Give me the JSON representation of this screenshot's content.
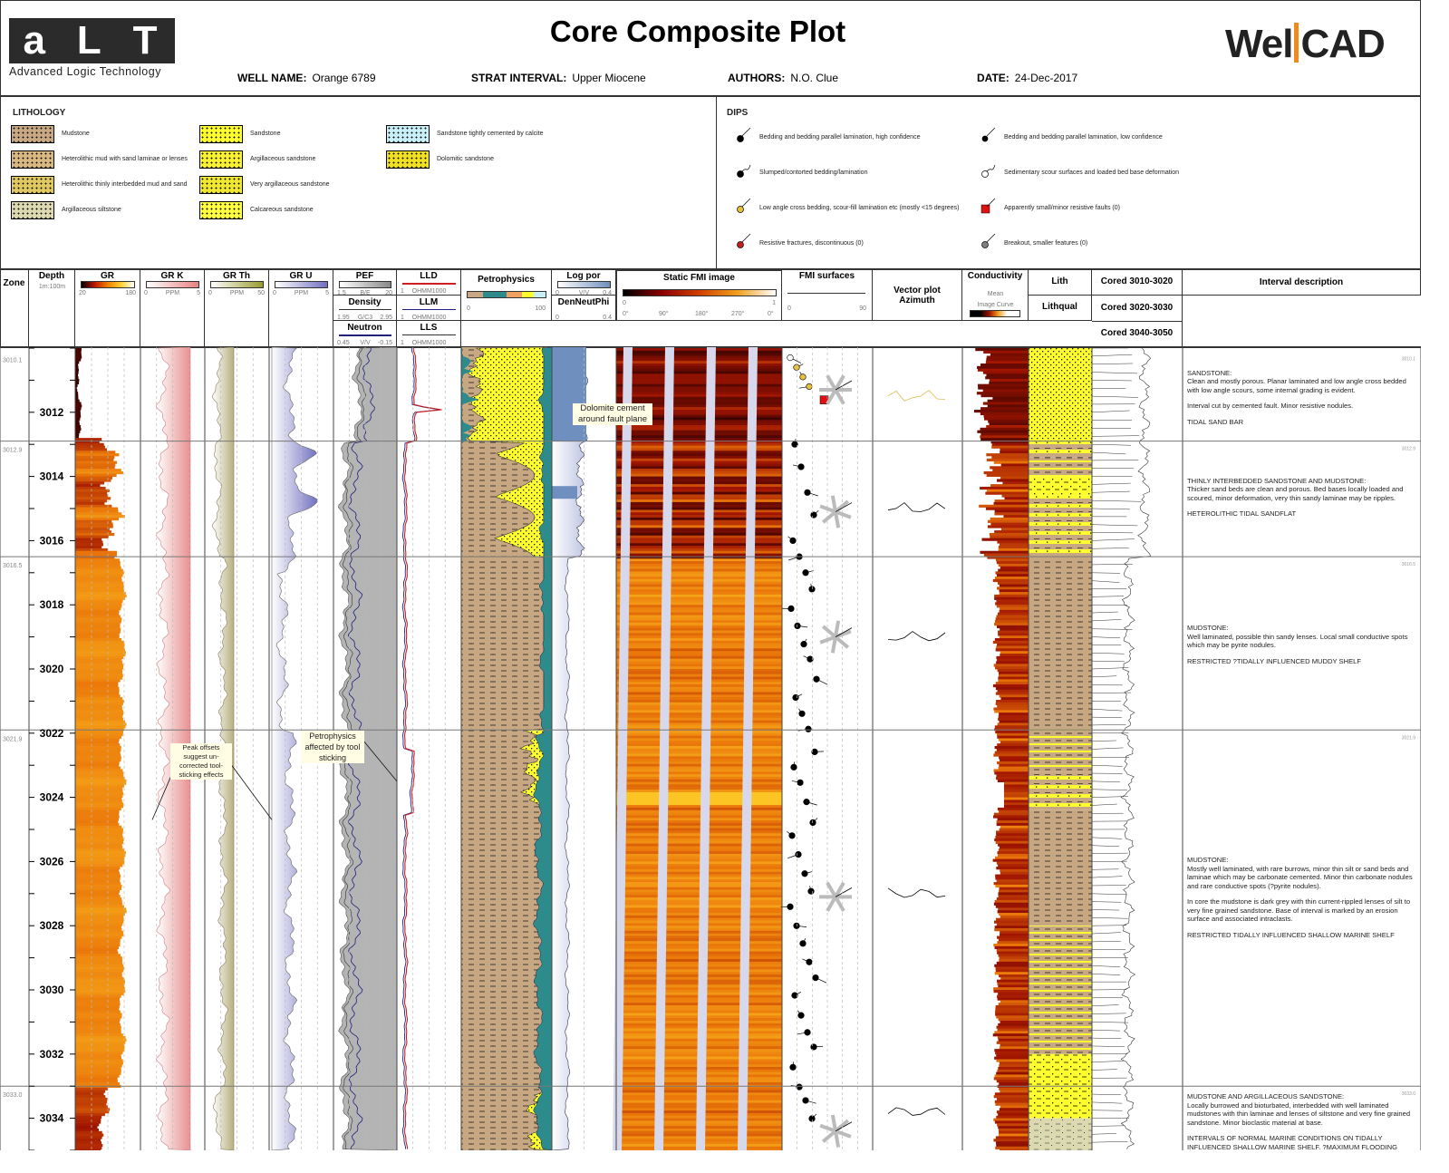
{
  "header": {
    "title": "Core Composite Plot",
    "logo_left_text": "aLT",
    "logo_left_subtitle": "Advanced Logic Technology",
    "logo_right_text": "WellCAD",
    "fields": [
      {
        "key": "WELL NAME:",
        "value": "Orange 6789"
      },
      {
        "key": "STRAT INTERVAL:",
        "value": "Upper Miocene"
      },
      {
        "key": "AUTHORS:",
        "value": "N.O. Clue"
      },
      {
        "key": "DATE:",
        "value": "24-Dec-2017"
      }
    ]
  },
  "lithology_legend": {
    "title": "LITHOLOGY",
    "items": [
      {
        "label": "Mudstone",
        "pattern": "mud"
      },
      {
        "label": "Heterolithic mud with sand laminae or lenses",
        "pattern": "hetmud"
      },
      {
        "label": "Heterolithic thinly interbedded mud and sand",
        "pattern": "hetthin"
      },
      {
        "label": "Argillaceous siltstone",
        "pattern": "silt"
      },
      {
        "label": "Sandstone",
        "pattern": "sand"
      },
      {
        "label": "Argillaceous sandstone",
        "pattern": "argsand"
      },
      {
        "label": "Very argillaceous sandstone",
        "pattern": "vargsand"
      },
      {
        "label": "Calcareous sandstone",
        "pattern": "calcsand"
      },
      {
        "label": "Sandstone tightly cemented by calcite",
        "pattern": "cemsand"
      },
      {
        "label": "Dolomitic sandstone",
        "pattern": "dolsand"
      }
    ]
  },
  "dips_legend": {
    "title": "DIPS",
    "items": [
      {
        "label": "Bedding and bedding parallel lamination, high confidence",
        "symbol": "black-dot",
        "color": "#000000"
      },
      {
        "label": "Bedding and bedding parallel lamination, low confidence",
        "symbol": "black-dot-small",
        "color": "#000000"
      },
      {
        "label": "Slumped/contorted bedding/lamination",
        "symbol": "black-dot-wavy",
        "color": "#000000"
      },
      {
        "label": "Sedimentary scour surfaces and loaded bed base deformation",
        "symbol": "open-dot-wavy",
        "color": "#ffffff"
      },
      {
        "label": "Low angle cross bedding, scour-fill lamination etc (mostly <15 degrees)",
        "symbol": "yellow-dot",
        "color": "#e8c040"
      },
      {
        "label": "Apparently small/minor resistive faults (0)",
        "symbol": "red-square",
        "color": "#e01010"
      },
      {
        "label": "Resistive fractures, discontinuous (0)",
        "symbol": "red-dot",
        "color": "#c02020"
      },
      {
        "label": "Breakout, smaller features (0)",
        "symbol": "grey-dot",
        "color": "#808080"
      }
    ]
  },
  "tracks": [
    {
      "id": "zone",
      "title": "Zone"
    },
    {
      "id": "depth",
      "title": "Depth",
      "scale": "1m:100m"
    },
    {
      "id": "gr",
      "title": "GR",
      "min": "20",
      "max": "180",
      "unit": ""
    },
    {
      "id": "grk",
      "title": "GR K",
      "min": "0",
      "max": "5",
      "unit": "PPM"
    },
    {
      "id": "grth",
      "title": "GR Th",
      "min": "0",
      "max": "50",
      "unit": "PPM"
    },
    {
      "id": "gru",
      "title": "GR U",
      "min": "0",
      "max": "5",
      "unit": "PPM"
    },
    {
      "id": "pef",
      "title": "PEF",
      "min": "1.5",
      "max": "20",
      "unit": "B/E",
      "sub": [
        {
          "title": "Density",
          "min": "1.95",
          "max": "2.95",
          "unit": "G/C3"
        },
        {
          "title": "Neutron",
          "min": "0.45",
          "max": "-0.15",
          "unit": "V/V"
        }
      ]
    },
    {
      "id": "lld",
      "title": "LLD",
      "min": "1",
      "max": "",
      "unit": "OHMM1000",
      "sub": [
        {
          "title": "LLM",
          "min": "1",
          "max": "",
          "unit": "OHMM1000"
        },
        {
          "title": "LLS",
          "min": "1",
          "max": "",
          "unit": "OHMM1000"
        }
      ]
    },
    {
      "id": "petro",
      "title": "Petrophysics",
      "min": "0",
      "max": "100"
    },
    {
      "id": "logpor",
      "title": "Log por",
      "min": "0",
      "max": "0.4",
      "unit": "V/V",
      "sub": [
        {
          "title": "DenNeutPhi",
          "min": "0",
          "max": "0.4"
        }
      ]
    },
    {
      "id": "fmi",
      "title": "Static FMI image",
      "min": "0",
      "max": "1",
      "azimuths": [
        "0°",
        "90°",
        "180°",
        "270°",
        "0°"
      ]
    },
    {
      "id": "fmis",
      "title": "FMI surfaces",
      "min": "0",
      "max": "90"
    },
    {
      "id": "vector",
      "title": "Vector plot Azimuth"
    },
    {
      "id": "cond",
      "title": "Conductivity",
      "sub1": "Mean",
      "sub2": "Image Curve"
    },
    {
      "id": "lith",
      "title": "Lith",
      "sub": "Lithqual"
    },
    {
      "id": "cored",
      "titles": [
        "Cored 3010-3020",
        "Cored 3020-3030",
        "Cored 3040-3050"
      ]
    },
    {
      "id": "desc",
      "title": "Interval description"
    }
  ],
  "colors": {
    "gr_low": "#000000",
    "gr_mid": "#c01800",
    "gr_high": "#ffd030",
    "lld": "#cc2020",
    "llm": "#202080",
    "neutron": "#202080",
    "logpor": "#6f8fbf",
    "teal": "#2e8b8b",
    "sand": "#ffff30",
    "mud": "#c8a882",
    "callout_bg": "#fffde4"
  },
  "depth": {
    "min": 3010,
    "max": 3035,
    "ticks": [
      "3012",
      "3014",
      "3016",
      "3018",
      "3020",
      "3022",
      "3024",
      "3026",
      "3028",
      "3030",
      "3032",
      "3034"
    ]
  },
  "zones": [
    {
      "top": "3010.1",
      "depth": 3010.1
    },
    {
      "top": "3012.9",
      "depth": 3012.9
    },
    {
      "top": "3016.5",
      "depth": 3016.5
    },
    {
      "top": "3021.9",
      "depth": 3021.9
    },
    {
      "top": "3033.0",
      "depth": 3033.0
    }
  ],
  "descriptions": [
    {
      "depth": 3010.1,
      "paras": [
        "SANDSTONE:\nClean and mostly porous. Planar laminated and low angle cross bedded with low angle scours, some internal grading is evident.",
        "Interval cut by cemented fault. Minor resistive nodules.",
        "TIDAL SAND BAR"
      ]
    },
    {
      "depth": 3012.9,
      "paras": [
        "THINLY INTERBEDDED SANDSTONE AND MUDSTONE:\nThicker sand beds are clean and porous.  Bed bases locally loaded and scoured, minor deformation, very thin sandy laminae may be ripples.",
        "HETEROLITHIC TIDAL SANDFLAT"
      ]
    },
    {
      "depth": 3016.5,
      "paras": [
        "MUDSTONE:\nWell laminated, possible thin sandy lenses.  Local small conductive spots which may be pyrite nodules.",
        "RESTRICTED ?TIDALLY INFLUENCED MUDDY SHELF"
      ]
    },
    {
      "depth": 3021.9,
      "paras": [
        "MUDSTONE:\nMostly well laminated, with rare burrows, minor thin silt or sand beds and laminae which may be carbonate cemented.  Minor thin carbonate nodules and rare conductive spots (?pyrite nodules).",
        "In core the mudstone is dark grey with thin current-rippled lenses of silt to very fine grained sandstone.  Base of interval is marked by an erosion surface and associated intraclasts.",
        "RESTRICTED TIDALLY INFLUENCED SHALLOW MARINE SHELF"
      ]
    },
    {
      "depth": 3033.0,
      "paras": [
        "MUDSTONE AND ARGILLACEOUS SANDSTONE:\nLocally burrowed and bioturbated, interbedded with well laminated mudstones with thin laminae and lenses of siltstone and very fine grained sandstone. Minor bioclastic material at base.",
        "INTERVALS OF NORMAL MARINE CONDITIONS ON TIDALLY INFLUENCED SHALLOW MARINE SHELF. ?MAXIMUM FLOODING"
      ]
    }
  ],
  "annotations": [
    {
      "text": "Peak offsets suggest un-corrected tool-sticking effects",
      "depth": 3022.4
    },
    {
      "text": "Petrophysics affected by tool sticking",
      "depth": 3022.0
    },
    {
      "text": "Dolomite cement around fault plane",
      "depth": 3011.8
    }
  ]
}
